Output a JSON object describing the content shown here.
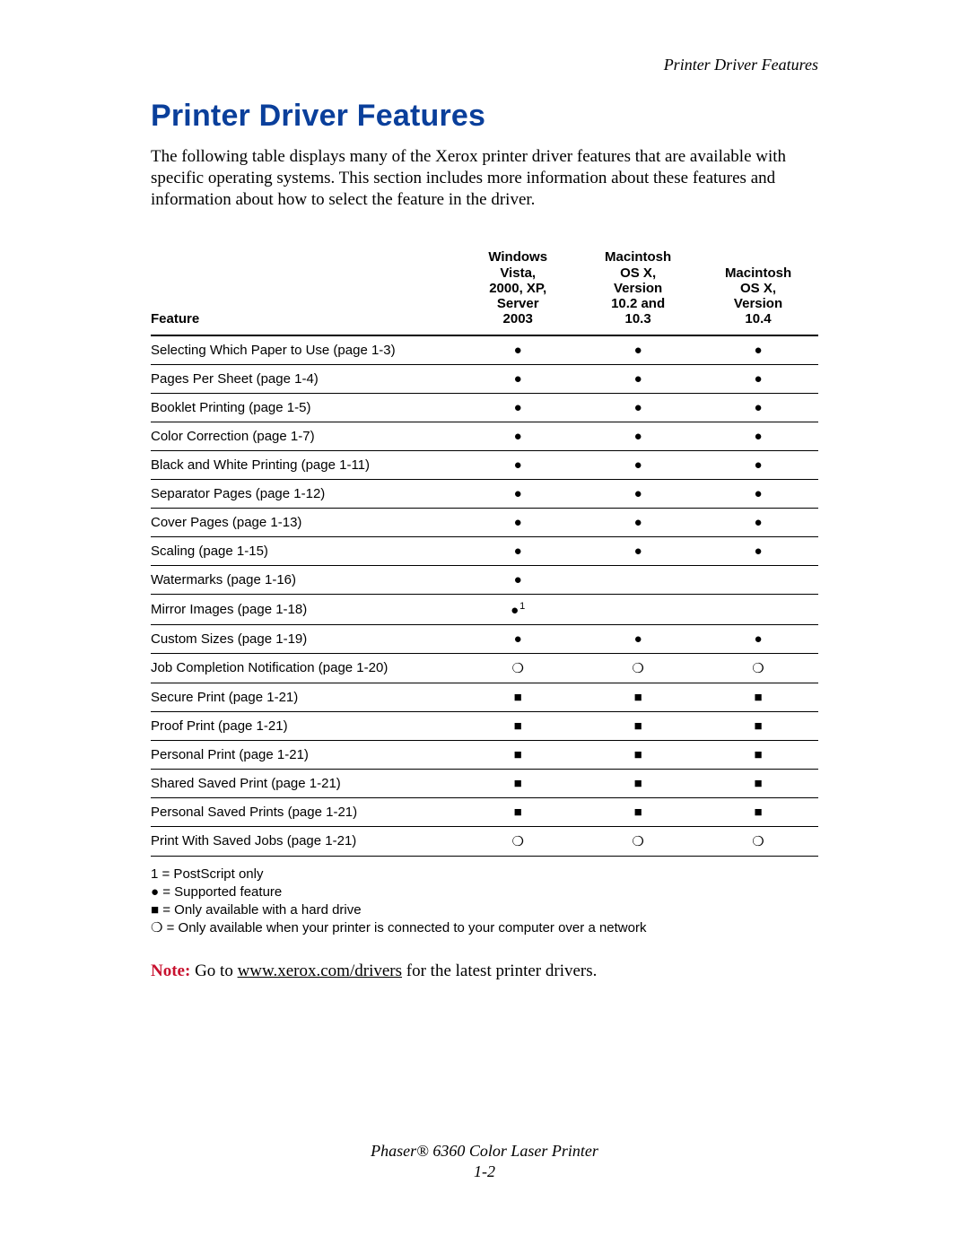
{
  "colors": {
    "heading": "#0a3f9b",
    "note_label": "#c8102e",
    "text": "#000000",
    "table_rule": "#000000",
    "background": "#ffffff"
  },
  "typography": {
    "heading_fontsize_pt": 26,
    "body_fontsize_pt": 14,
    "table_fontsize_pt": 11,
    "body_family": "Times New Roman",
    "ui_family": "Helvetica"
  },
  "running_head": "Printer Driver Features",
  "heading": "Printer Driver Features",
  "intro": "The following table displays many of the Xerox printer driver features that are available with specific operating systems. This section includes more information about these features and information about how to select the feature in the driver.",
  "table": {
    "type": "table",
    "columns": [
      {
        "key": "feature",
        "label": "Feature",
        "align": "left"
      },
      {
        "key": "win",
        "lines": [
          "Windows",
          "Vista,",
          "2000, XP,",
          "Server",
          "2003"
        ],
        "align": "center"
      },
      {
        "key": "mac103",
        "lines": [
          "Macintosh",
          "OS X,",
          "Version",
          "10.2 and",
          "10.3"
        ],
        "align": "center"
      },
      {
        "key": "mac104",
        "lines": [
          "Macintosh",
          "OS X,",
          "Version",
          "10.4"
        ],
        "align": "center"
      }
    ],
    "rows": [
      {
        "feature": "Selecting Which Paper to Use (page 1-3)",
        "win": "dot",
        "mac103": "dot",
        "mac104": "dot"
      },
      {
        "feature": "Pages Per Sheet (page 1-4)",
        "win": "dot",
        "mac103": "dot",
        "mac104": "dot"
      },
      {
        "feature": "Booklet Printing (page 1-5)",
        "win": "dot",
        "mac103": "dot",
        "mac104": "dot"
      },
      {
        "feature": "Color Correction (page 1-7)",
        "win": "dot",
        "mac103": "dot",
        "mac104": "dot"
      },
      {
        "feature": "Black and White Printing (page 1-11)",
        "win": "dot",
        "mac103": "dot",
        "mac104": "dot"
      },
      {
        "feature": "Separator Pages (page 1-12)",
        "win": "dot",
        "mac103": "dot",
        "mac104": "dot"
      },
      {
        "feature": "Cover Pages (page 1-13)",
        "win": "dot",
        "mac103": "dot",
        "mac104": "dot"
      },
      {
        "feature": "Scaling (page 1-15)",
        "win": "dot",
        "mac103": "dot",
        "mac104": "dot"
      },
      {
        "feature": "Watermarks (page 1-16)",
        "win": "dot",
        "mac103": "",
        "mac104": ""
      },
      {
        "feature": "Mirror Images (page 1-18)",
        "win": "dot",
        "win_fn": "1",
        "mac103": "",
        "mac104": ""
      },
      {
        "feature": "Custom Sizes (page 1-19)",
        "win": "dot",
        "mac103": "dot",
        "mac104": "dot"
      },
      {
        "feature": "Job Completion Notification (page 1-20)",
        "win": "ring",
        "mac103": "ring",
        "mac104": "ring"
      },
      {
        "feature": "Secure Print (page 1-21)",
        "win": "square",
        "mac103": "square",
        "mac104": "square"
      },
      {
        "feature": "Proof Print (page 1-21)",
        "win": "square",
        "mac103": "square",
        "mac104": "square"
      },
      {
        "feature": "Personal Print (page 1-21)",
        "win": "square",
        "mac103": "square",
        "mac104": "square"
      },
      {
        "feature": "Shared Saved Print (page 1-21)",
        "win": "square",
        "mac103": "square",
        "mac104": "square"
      },
      {
        "feature": "Personal Saved Prints (page 1-21)",
        "win": "square",
        "mac103": "square",
        "mac104": "square"
      },
      {
        "feature": "Print With Saved Jobs (page 1-21)",
        "win": "ring",
        "mac103": "ring",
        "mac104": "ring"
      }
    ]
  },
  "legend": {
    "fn1": "1 = PostScript only",
    "dot": "● = Supported feature",
    "square": "■ = Only available with a hard drive",
    "ring": "❍ = Only available when your printer is connected to your computer over a network"
  },
  "note": {
    "label": "Note:",
    "before_link": " Go to ",
    "link_text": "www.xerox.com/drivers",
    "link_href": "http://www.xerox.com/drivers",
    "after_link": " for the latest printer drivers."
  },
  "footer": {
    "product": "Phaser® 6360 Color Laser Printer",
    "page": "1-2"
  }
}
